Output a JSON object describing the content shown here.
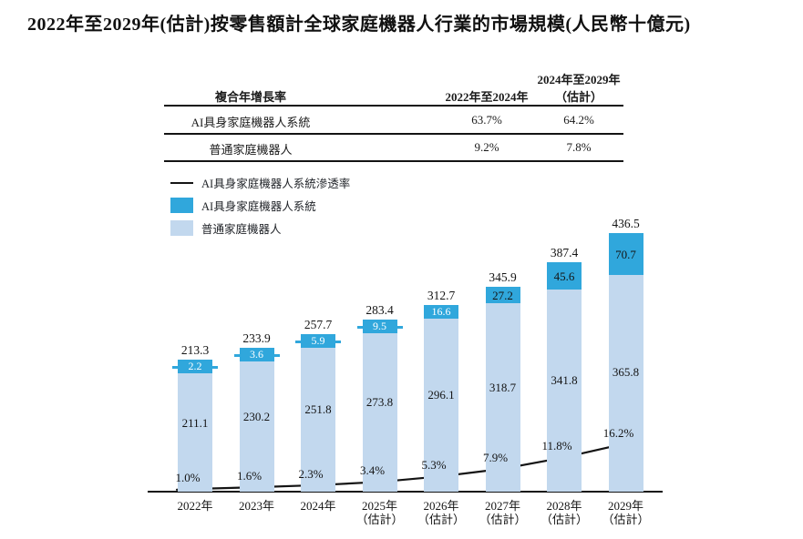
{
  "title": "2022年至2029年(估計)按零售額計全球家庭機器人行業的市場規模(人民幣十億元)",
  "table": {
    "col1_header": "複合年增長率",
    "col2_header": "2022年至2024年",
    "col3_header_line1": "2024年至2029年",
    "col3_header_line2": "（估計）",
    "rows": [
      {
        "label": "AI具身家庭機器人系統",
        "cagr_2022_2024": "63.7%",
        "cagr_2024_2029": "64.2%"
      },
      {
        "label": "普通家庭機器人",
        "cagr_2022_2024": "9.2%",
        "cagr_2024_2029": "7.8%"
      }
    ]
  },
  "legend": {
    "line_label": "AI具身家庭機器人系統滲透率",
    "ai_label": "AI具身家庭機器人系統",
    "ordinary_label": "普通家庭機器人"
  },
  "colors": {
    "ai_blue": "#30A7DC",
    "ordinary_blue": "#C2D8EE",
    "line_black": "#141414"
  },
  "chart_data": {
    "type": "bar",
    "subtype": "stacked-bars-with-penetration-line",
    "unit": "人民幣十億元",
    "categories": [
      {
        "year": "2022年",
        "note": ""
      },
      {
        "year": "2023年",
        "note": ""
      },
      {
        "year": "2024年",
        "note": ""
      },
      {
        "year": "2025年",
        "note": "（估計）"
      },
      {
        "year": "2026年",
        "note": "（估計）"
      },
      {
        "year": "2027年",
        "note": "（估計）"
      },
      {
        "year": "2028年",
        "note": "（估計）"
      },
      {
        "year": "2029年",
        "note": "（估計）"
      }
    ],
    "series": [
      {
        "name": "普通家庭機器人",
        "values": [
          211.1,
          230.2,
          251.8,
          273.8,
          296.1,
          318.7,
          341.8,
          365.8
        ]
      },
      {
        "name": "AI具身家庭機器人系統",
        "values": [
          2.2,
          3.6,
          5.9,
          9.5,
          16.6,
          27.2,
          45.6,
          70.7
        ]
      }
    ],
    "totals": [
      213.3,
      233.9,
      257.7,
      283.4,
      312.7,
      345.9,
      387.4,
      436.5
    ],
    "line_series": {
      "name": "AI具身家庭機器人系統滲透率",
      "values_pct": [
        1.0,
        1.6,
        2.3,
        3.4,
        5.3,
        7.9,
        11.8,
        16.2
      ],
      "labels": [
        "1.0%",
        "1.6%",
        "2.3%",
        "3.4%",
        "5.3%",
        "7.9%",
        "11.8%",
        "16.2%"
      ]
    },
    "legend_position": "top-left",
    "grid": false
  }
}
